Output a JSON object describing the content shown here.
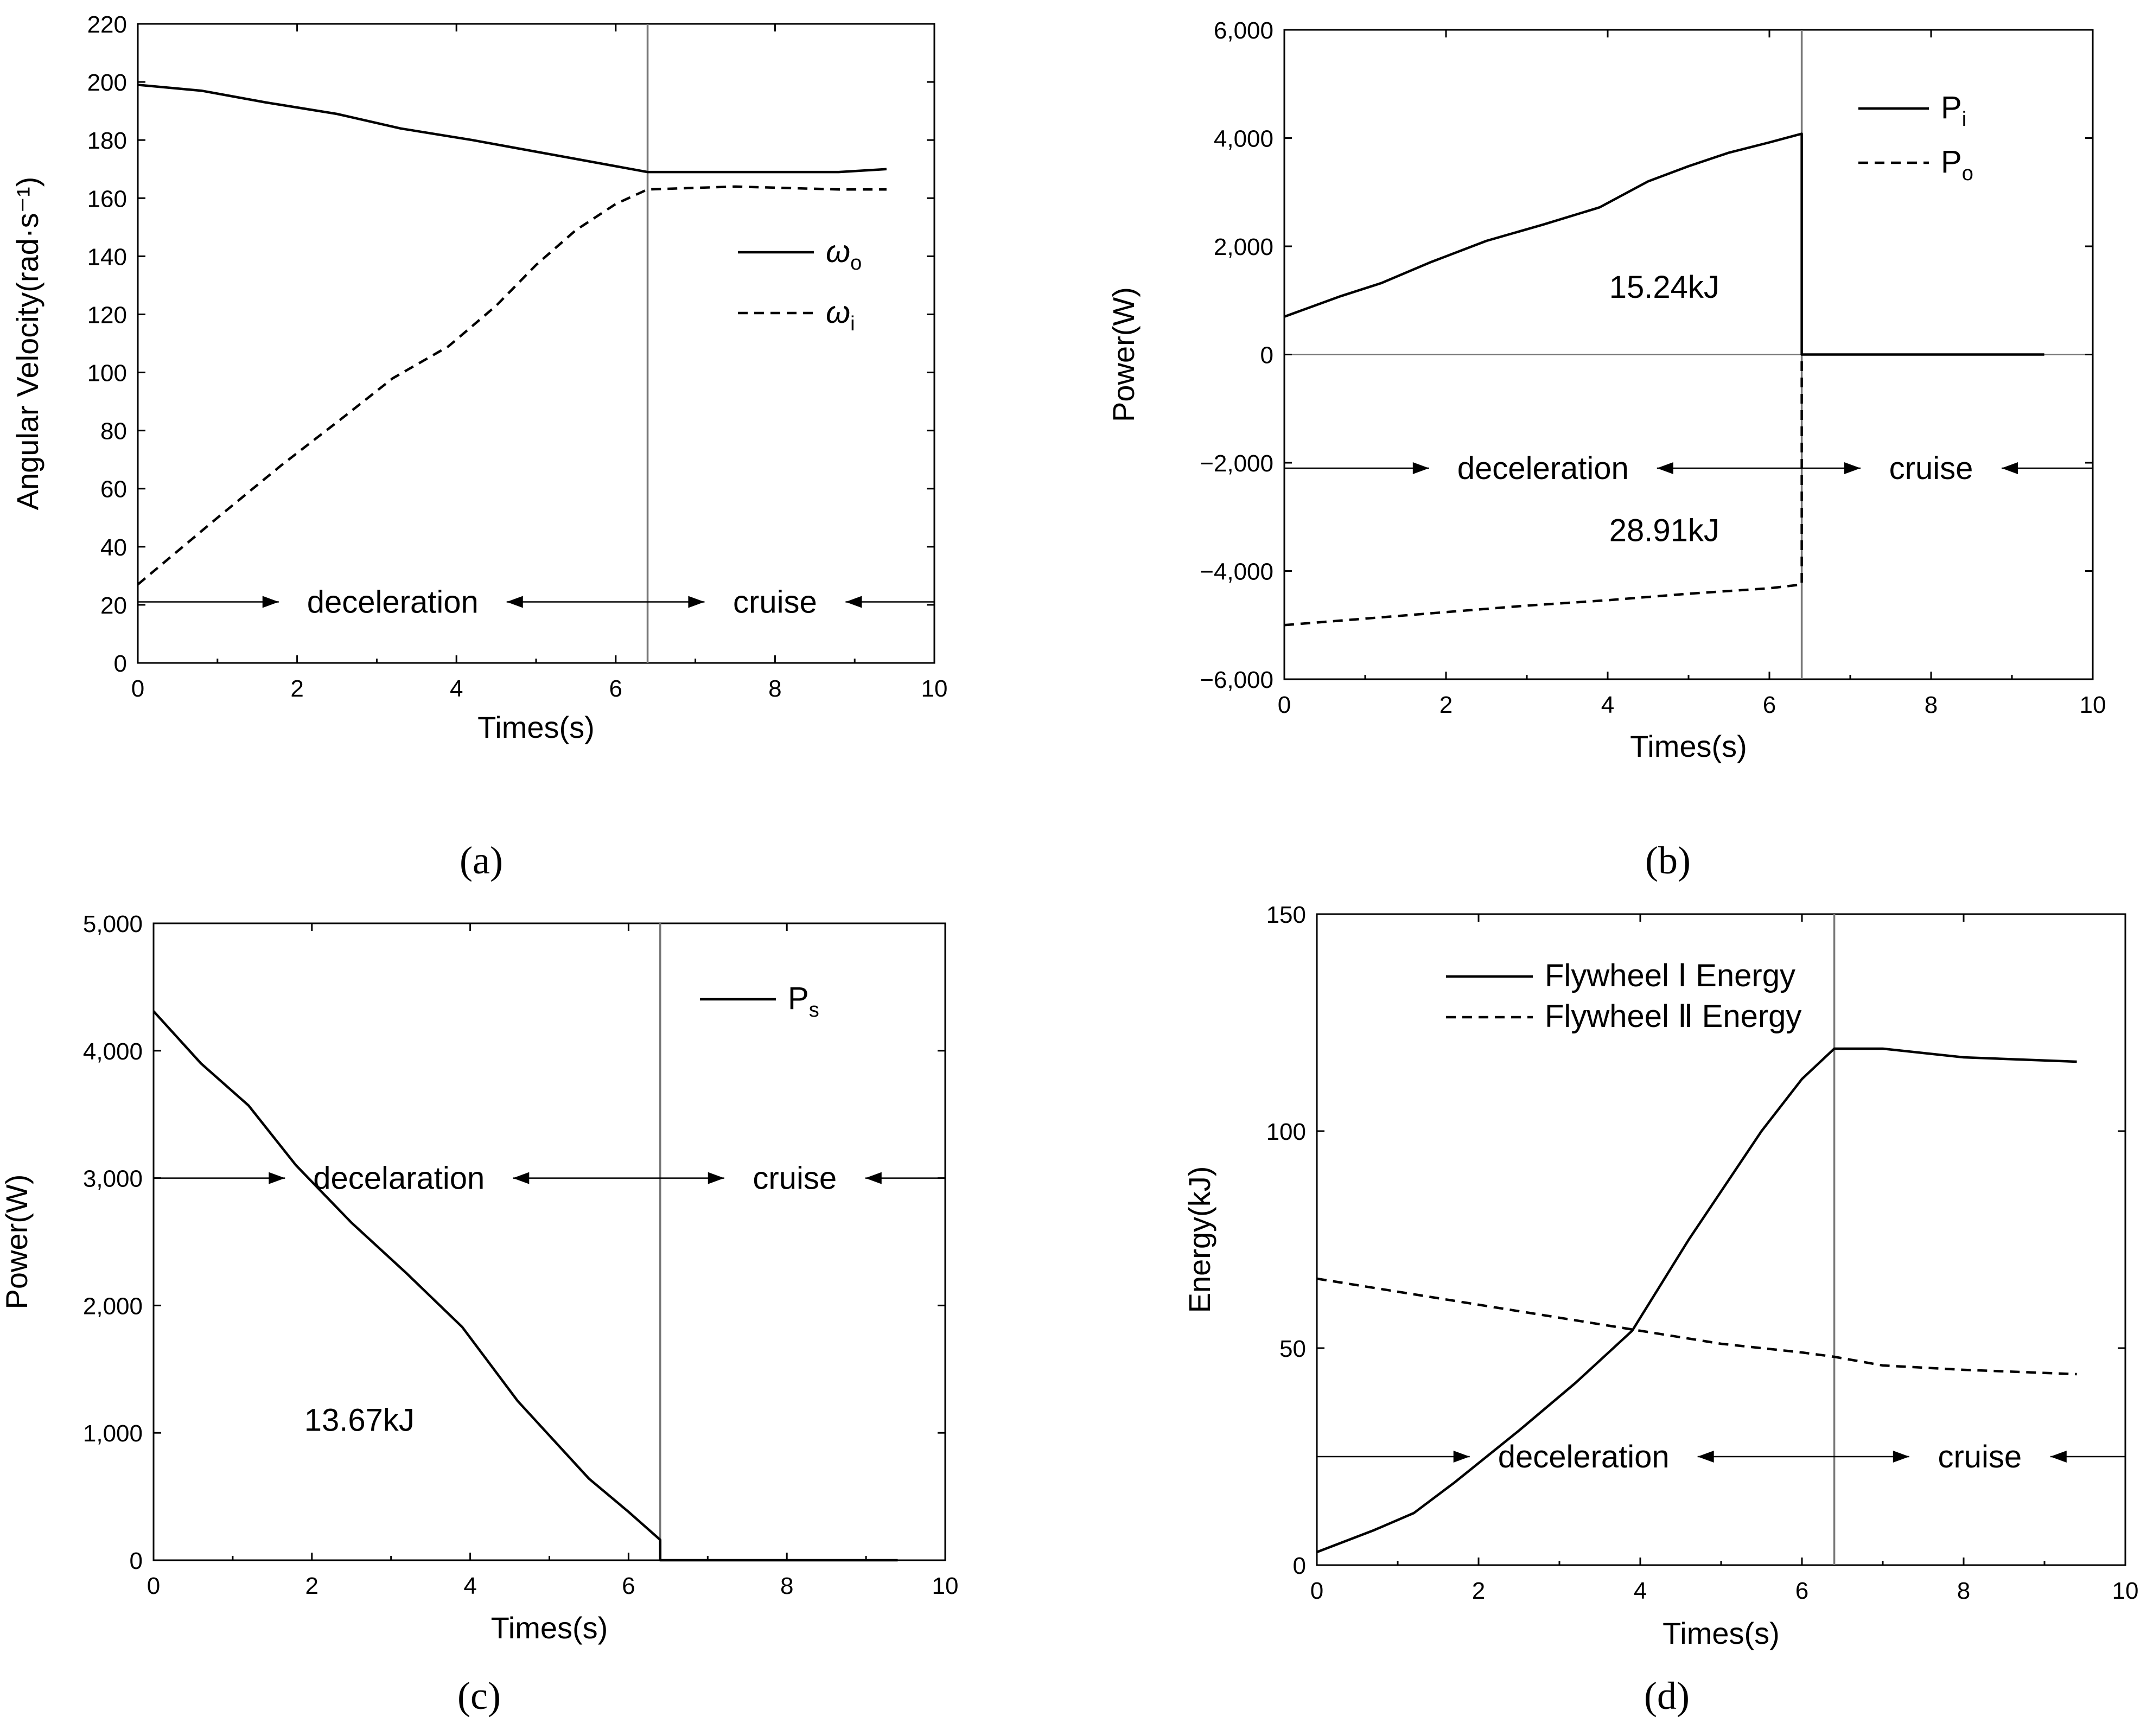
{
  "chart_data": [
    {
      "id": "a",
      "type": "line",
      "caption": "(a)",
      "xlabel": "Times(s)",
      "ylabel": "Angular Velocity(rad·s⁻¹)",
      "xlim": [
        0,
        10
      ],
      "ylim": [
        0,
        220
      ],
      "xticks": [
        0,
        2,
        4,
        6,
        8,
        10
      ],
      "yticks": [
        0,
        20,
        40,
        60,
        80,
        100,
        120,
        140,
        160,
        180,
        200,
        220
      ],
      "xtick_labels": [
        "0",
        "2",
        "4",
        "6",
        "8",
        "10"
      ],
      "ytick_labels": [
        "0",
        "20",
        "40",
        "60",
        "80",
        "100",
        "120",
        "140",
        "160",
        "180",
        "200",
        "220"
      ],
      "phase_boundary": 6.4,
      "phase_arrow_y": 21,
      "phase_labels": [
        {
          "text": "deceleration",
          "x": 3.2,
          "y": 21
        },
        {
          "text": "cruise",
          "x": 8.0,
          "y": 21
        }
      ],
      "legend": [
        {
          "name": "ω",
          "sub": "o",
          "style": "solid"
        },
        {
          "name": "ω",
          "sub": "i",
          "style": "dashed"
        }
      ],
      "series": [
        {
          "name": "ωo",
          "style": "solid",
          "x": [
            0,
            0.8,
            1.6,
            2.5,
            3.3,
            4.2,
            5.0,
            5.8,
            6.4,
            7.5,
            8.8,
            9.4
          ],
          "y": [
            199,
            197,
            193,
            189,
            184,
            180,
            176,
            172,
            169,
            169,
            169,
            170
          ]
        },
        {
          "name": "ωi",
          "style": "dashed",
          "x": [
            0,
            1.0,
            1.8,
            2.6,
            3.2,
            3.9,
            4.5,
            5.0,
            5.5,
            6.0,
            6.4,
            7.5,
            8.8,
            9.4
          ],
          "y": [
            27,
            50,
            68,
            85,
            98,
            109,
            123,
            137,
            149,
            158,
            163,
            164,
            163,
            163
          ]
        }
      ]
    },
    {
      "id": "b",
      "type": "line",
      "caption": "(b)",
      "xlabel": "Times(s)",
      "ylabel": "Power(W)",
      "xlim": [
        0,
        10
      ],
      "ylim": [
        -6000,
        6000
      ],
      "xticks": [
        0,
        2,
        4,
        6,
        8,
        10
      ],
      "yticks": [
        -6000,
        -4000,
        -2000,
        0,
        2000,
        4000,
        6000
      ],
      "xtick_labels": [
        "0",
        "2",
        "4",
        "6",
        "8",
        "10"
      ],
      "ytick_labels": [
        "−6,000",
        "−4,000",
        "−2,000",
        "0",
        "2,000",
        "4,000",
        "6,000"
      ],
      "phase_boundary": 6.4,
      "phase_arrow_y": -2100,
      "zero_line": 0,
      "phase_labels": [
        {
          "text": "deceleration",
          "x": 3.2,
          "y": -2100
        },
        {
          "text": "cruise",
          "x": 8.0,
          "y": -2100
        }
      ],
      "annotations": [
        {
          "text": "15.24kJ",
          "x": 4.7,
          "y": 1250
        },
        {
          "text": "28.91kJ",
          "x": 4.7,
          "y": -3250
        }
      ],
      "legend": [
        {
          "name": "P",
          "sub": "i",
          "style": "solid"
        },
        {
          "name": "P",
          "sub": "o",
          "style": "dashed"
        }
      ],
      "series": [
        {
          "name": "Pi",
          "style": "solid",
          "x": [
            0,
            0.7,
            1.2,
            1.8,
            2.5,
            3.2,
            3.9,
            4.5,
            5.0,
            5.5,
            6.0,
            6.4,
            6.4,
            9.4
          ],
          "y": [
            700,
            1080,
            1320,
            1700,
            2100,
            2400,
            2720,
            3200,
            3480,
            3730,
            3920,
            4080,
            0,
            0
          ]
        },
        {
          "name": "Po",
          "style": "dashed",
          "x": [
            0,
            1.0,
            2.0,
            3.0,
            4.0,
            5.0,
            6.0,
            6.4,
            6.4
          ],
          "y": [
            -5000,
            -4880,
            -4760,
            -4640,
            -4540,
            -4420,
            -4320,
            -4250,
            0
          ]
        }
      ]
    },
    {
      "id": "c",
      "type": "line",
      "caption": "(c)",
      "xlabel": "Times(s)",
      "ylabel": "Power(W)",
      "xlim": [
        0,
        10
      ],
      "ylim": [
        0,
        5000
      ],
      "xticks": [
        0,
        2,
        4,
        6,
        8,
        10
      ],
      "yticks": [
        0,
        1000,
        2000,
        3000,
        4000,
        5000
      ],
      "xtick_labels": [
        "0",
        "2",
        "4",
        "6",
        "8",
        "10"
      ],
      "ytick_labels": [
        "0",
        "1,000",
        "2,000",
        "3,000",
        "4,000",
        "5,000"
      ],
      "phase_boundary": 6.4,
      "phase_arrow_y": 3000,
      "phase_labels": [
        {
          "text": "decelaration",
          "x": 3.1,
          "y": 3000
        },
        {
          "text": "cruise",
          "x": 8.1,
          "y": 3000
        }
      ],
      "annotations": [
        {
          "text": "13.67kJ",
          "x": 2.6,
          "y": 1100
        }
      ],
      "legend": [
        {
          "name": "P",
          "sub": "s",
          "style": "solid"
        }
      ],
      "series": [
        {
          "name": "Ps",
          "style": "solid",
          "x": [
            0,
            0.6,
            1.2,
            1.8,
            2.5,
            3.2,
            3.9,
            4.6,
            5.5,
            6.0,
            6.4,
            6.4,
            9.4
          ],
          "y": [
            4310,
            3900,
            3570,
            3100,
            2650,
            2250,
            1830,
            1250,
            640,
            380,
            160,
            0,
            0
          ]
        }
      ]
    },
    {
      "id": "d",
      "type": "line",
      "caption": "(d)",
      "xlabel": "Times(s)",
      "ylabel": "Energy(kJ)",
      "xlim": [
        0,
        10
      ],
      "ylim": [
        0,
        150
      ],
      "xticks": [
        0,
        2,
        4,
        6,
        8,
        10
      ],
      "yticks": [
        0,
        50,
        100,
        150
      ],
      "xtick_labels": [
        "0",
        "2",
        "4",
        "6",
        "8",
        "10"
      ],
      "ytick_labels": [
        "0",
        "50",
        "100",
        "150"
      ],
      "phase_boundary": 6.4,
      "phase_arrow_y": 25,
      "phase_labels": [
        {
          "text": "deceleration",
          "x": 3.3,
          "y": 25
        },
        {
          "text": "cruise",
          "x": 8.2,
          "y": 25
        }
      ],
      "legend": [
        {
          "name": "Flywheel Ⅰ Energy",
          "sub": "",
          "style": "solid"
        },
        {
          "name": "Flywheel Ⅱ Energy",
          "sub": "",
          "style": "dashed"
        }
      ],
      "series": [
        {
          "name": "Flywheel Ⅰ Energy",
          "style": "solid",
          "x": [
            0,
            0.7,
            1.2,
            1.7,
            2.5,
            3.2,
            3.9,
            4.6,
            5.5,
            6.0,
            6.4,
            7.0,
            8.0,
            9.4
          ],
          "y": [
            3,
            8,
            12,
            19,
            31,
            42,
            54,
            75,
            100,
            112,
            119,
            119,
            117,
            116
          ]
        },
        {
          "name": "Flywheel Ⅱ Energy",
          "style": "dashed",
          "x": [
            0,
            1.0,
            2.0,
            3.0,
            4.0,
            5.0,
            6.0,
            6.4,
            7.0,
            8.0,
            9.4
          ],
          "y": [
            66,
            63,
            60,
            57,
            54,
            51,
            49,
            48,
            46,
            45,
            44
          ]
        }
      ]
    }
  ]
}
